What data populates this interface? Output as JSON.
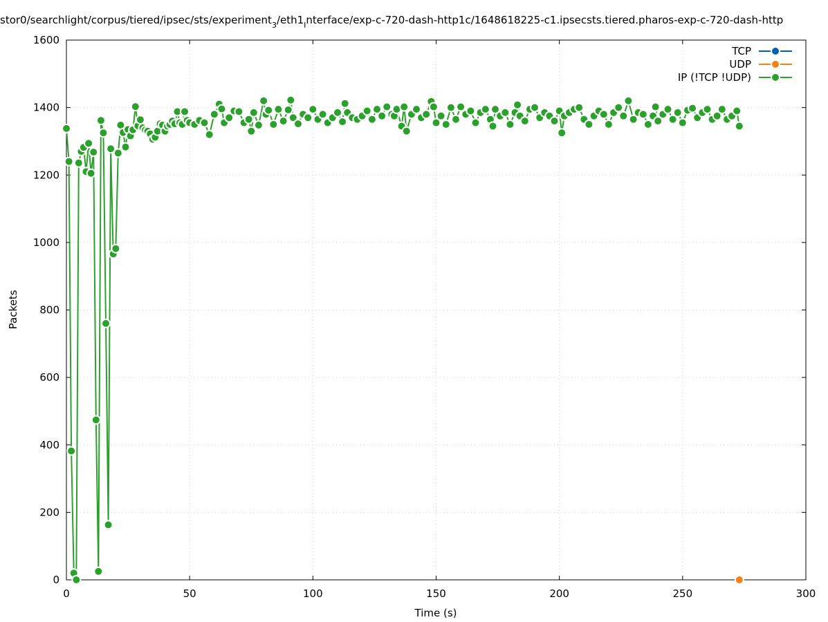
{
  "chart_data": {
    "type": "line",
    "title_main": "stor0/searchlight/corpus/tiered/ipsec/sts/experiment",
    "title_sub": "3",
    "title_mid": "/eth1",
    "title_sub2": "I",
    "title_tail": "nterface/exp-c-720-dash-http1c/1648618225-c1.ipsecsts.tiered.pharos-exp-c-720-dash-http",
    "xlabel": "Time (s)",
    "ylabel": "Packets",
    "xlim": [
      0,
      300
    ],
    "ylim": [
      0,
      1600
    ],
    "xticks": [
      0,
      50,
      100,
      150,
      200,
      250,
      300
    ],
    "yticks": [
      0,
      200,
      400,
      600,
      800,
      1000,
      1200,
      1400,
      1600
    ],
    "xtick_labels": [
      "0",
      "50",
      "100",
      "150",
      "200",
      "250",
      "300"
    ],
    "ytick_labels": [
      "0",
      "200",
      "400",
      "600",
      "800",
      "1000",
      "1200",
      "1400",
      "1600"
    ],
    "grid": true,
    "legend_position": "top-right",
    "series": [
      {
        "name": "TCP",
        "color": "#0060ad",
        "x": [],
        "y": []
      },
      {
        "name": "UDP",
        "color": "#f28118",
        "x": [
          273
        ],
        "y": [
          0
        ]
      },
      {
        "name": "IP (!TCP  !UDP)",
        "color": "#2ca02c",
        "x": [
          0,
          1,
          2,
          3,
          4,
          5,
          6,
          7,
          8,
          9,
          10,
          11,
          12,
          13,
          14,
          15,
          16,
          17,
          18,
          19,
          20,
          21,
          22,
          23,
          24,
          25,
          26,
          27,
          28,
          29,
          30,
          31,
          32,
          33,
          34,
          35,
          36,
          37,
          38,
          39,
          40,
          41,
          42,
          43,
          44,
          45,
          46,
          47,
          48,
          49,
          50,
          52,
          54,
          56,
          58,
          60,
          62,
          63,
          64,
          66,
          68,
          70,
          72,
          74,
          75,
          76,
          78,
          80,
          81,
          82,
          84,
          86,
          88,
          90,
          91,
          92,
          94,
          96,
          98,
          100,
          102,
          104,
          106,
          108,
          110,
          112,
          113,
          114,
          116,
          118,
          120,
          122,
          124,
          126,
          128,
          130,
          132,
          133,
          134,
          136,
          137,
          138,
          140,
          142,
          144,
          146,
          148,
          149,
          150,
          152,
          154,
          156,
          158,
          160,
          162,
          164,
          166,
          168,
          170,
          172,
          173,
          174,
          176,
          178,
          180,
          182,
          183,
          184,
          186,
          188,
          190,
          192,
          194,
          196,
          198,
          200,
          201,
          202,
          204,
          206,
          208,
          210,
          212,
          214,
          216,
          218,
          220,
          222,
          224,
          226,
          228,
          230,
          232,
          234,
          236,
          238,
          239,
          240,
          242,
          244,
          246,
          248,
          250,
          252,
          254,
          256,
          258,
          260,
          262,
          264,
          266,
          268,
          270,
          272,
          273
        ],
        "y": [
          1338,
          1240,
          382,
          20,
          0,
          1236,
          1270,
          1282,
          1210,
          1294,
          1205,
          1268,
          474,
          25,
          1362,
          1325,
          760,
          163,
          1278,
          966,
          982,
          1265,
          1348,
          1326,
          1283,
          1335,
          1316,
          1334,
          1403,
          1346,
          1364,
          1340,
          1333,
          1330,
          1322,
          1306,
          1312,
          1330,
          1352,
          1348,
          1330,
          1345,
          1350,
          1360,
          1352,
          1388,
          1355,
          1350,
          1388,
          1362,
          1355,
          1350,
          1362,
          1355,
          1320,
          1380,
          1410,
          1396,
          1355,
          1370,
          1390,
          1388,
          1355,
          1365,
          1330,
          1385,
          1348,
          1420,
          1380,
          1392,
          1350,
          1395,
          1360,
          1393,
          1422,
          1370,
          1352,
          1380,
          1370,
          1395,
          1365,
          1380,
          1355,
          1370,
          1385,
          1358,
          1412,
          1385,
          1370,
          1365,
          1375,
          1390,
          1365,
          1395,
          1375,
          1402,
          1380,
          1375,
          1395,
          1345,
          1402,
          1330,
          1380,
          1395,
          1370,
          1380,
          1418,
          1402,
          1355,
          1375,
          1350,
          1400,
          1365,
          1402,
          1380,
          1390,
          1355,
          1385,
          1395,
          1365,
          1345,
          1395,
          1375,
          1385,
          1350,
          1385,
          1408,
          1375,
          1360,
          1395,
          1400,
          1370,
          1385,
          1375,
          1360,
          1390,
          1325,
          1375,
          1385,
          1395,
          1400,
          1365,
          1350,
          1375,
          1390,
          1380,
          1350,
          1385,
          1400,
          1375,
          1420,
          1365,
          1385,
          1380,
          1350,
          1375,
          1402,
          1360,
          1380,
          1395,
          1365,
          1385,
          1355,
          1392,
          1398,
          1370,
          1385,
          1395,
          1365,
          1375,
          1395,
          1365,
          1375,
          1390,
          1345
        ]
      }
    ]
  }
}
